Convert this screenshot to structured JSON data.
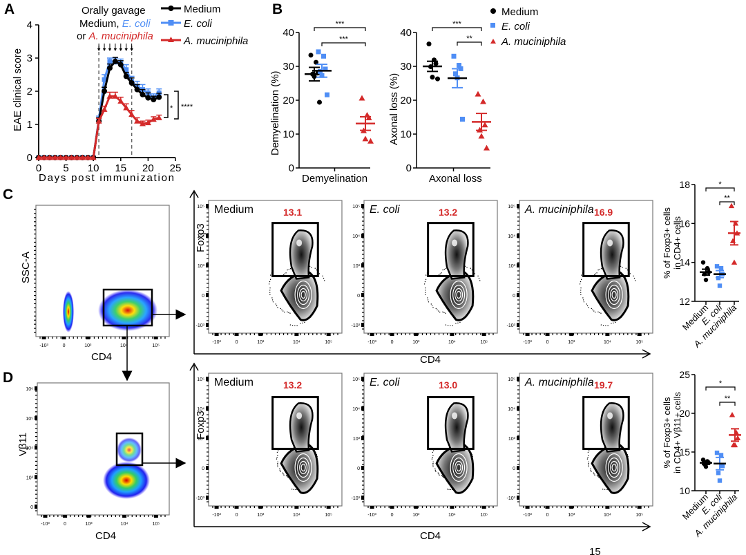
{
  "colors": {
    "medium": "#000000",
    "ecoli": "#4f8ef5",
    "akk": "#d42a2a",
    "gate_text": "#d42a2a"
  },
  "panels": {
    "A": "A",
    "B": "B",
    "C": "C",
    "D": "D"
  },
  "chart_data": [
    {
      "id": "A",
      "type": "line",
      "title": "",
      "xlabel": "Days post immunization",
      "ylabel": "EAE clinical score",
      "xlim": [
        0,
        25
      ],
      "ylim": [
        0,
        4
      ],
      "xticks": [
        "0",
        "5",
        "10",
        "15",
        "20",
        "25"
      ],
      "yticks": [
        "0",
        "1",
        "2",
        "3",
        "4"
      ],
      "annotation": {
        "line1": "Orally gavage",
        "line2_prefix": "Medium, ",
        "line2_ecoli": "E. coli",
        "line3_prefix": "or ",
        "line3_akk": "A. muciniphila"
      },
      "gavage_days": [
        11,
        12,
        13,
        14,
        15,
        16,
        17
      ],
      "dashed_lines_x": [
        11,
        17
      ],
      "significance": [
        {
          "label": "*"
        },
        {
          "label": "****"
        }
      ],
      "legend": {
        "position": "top-right",
        "entries": [
          "Medium",
          "E. coli",
          "A. muciniphila"
        ]
      },
      "x": [
        0,
        1,
        2,
        3,
        4,
        5,
        6,
        7,
        8,
        9,
        10,
        11,
        12,
        13,
        14,
        15,
        16,
        17,
        18,
        19,
        20,
        21,
        22
      ],
      "series": [
        {
          "name": "Medium",
          "values": [
            0,
            0,
            0,
            0,
            0,
            0,
            0,
            0,
            0,
            0,
            0,
            1.1,
            2.0,
            2.7,
            2.9,
            2.8,
            2.45,
            2.25,
            2.05,
            1.9,
            1.8,
            1.75,
            1.82
          ],
          "err": [
            0,
            0,
            0,
            0,
            0,
            0,
            0,
            0,
            0,
            0,
            0,
            0.1,
            0.12,
            0.12,
            0.12,
            0.12,
            0.12,
            0.15,
            0.15,
            0.15,
            0.15,
            0.1,
            0.12
          ]
        },
        {
          "name": "E. coli",
          "values": [
            0,
            0,
            0,
            0,
            0,
            0,
            0,
            0,
            0,
            0,
            0,
            1.15,
            2.35,
            2.9,
            2.88,
            2.85,
            2.65,
            2.3,
            2.15,
            2.05,
            1.95,
            1.8,
            1.95
          ],
          "err": [
            0,
            0,
            0,
            0,
            0,
            0,
            0,
            0,
            0,
            0,
            0,
            0.1,
            0.15,
            0.1,
            0.12,
            0.12,
            0.15,
            0.15,
            0.15,
            0.15,
            0.12,
            0.12,
            0.12
          ]
        },
        {
          "name": "A. muciniphila",
          "values": [
            0,
            0,
            0,
            0,
            0,
            0,
            0,
            0,
            0,
            0,
            0,
            1.1,
            1.45,
            1.85,
            1.85,
            1.7,
            1.5,
            1.3,
            1.1,
            1.02,
            1.05,
            1.15,
            1.2
          ],
          "err": [
            0,
            0,
            0,
            0,
            0,
            0,
            0,
            0,
            0,
            0,
            0,
            0.08,
            0.1,
            0.12,
            0.12,
            0.12,
            0.12,
            0.12,
            0.1,
            0.08,
            0.08,
            0.08,
            0.08
          ]
        }
      ]
    },
    {
      "id": "B1",
      "type": "scatter",
      "ylabel": "Demyelination (%)",
      "xlabel": "Demyelination",
      "ylim": [
        0,
        40
      ],
      "yticks": [
        "0",
        "10",
        "20",
        "30",
        "40"
      ],
      "groups": [
        {
          "name": "Medium",
          "values": [
            33.3,
            31.2,
            28,
            27.7,
            27,
            19.4
          ],
          "mean": 27.7,
          "sem": 2
        },
        {
          "name": "E. coli",
          "values": [
            34.3,
            33,
            29.2,
            28.5,
            27.3,
            21.6
          ],
          "mean": 28.7,
          "sem": 1.9
        },
        {
          "name": "A. muciniphila",
          "values": [
            20.6,
            15.6,
            14.8,
            11,
            8.6,
            7.9
          ],
          "mean": 13.1,
          "sem": 2
        }
      ],
      "significance": [
        {
          "from": "Medium",
          "to": "A. muciniphila",
          "label": "***"
        },
        {
          "from": "E. coli",
          "to": "A. muciniphila",
          "label": "***"
        }
      ]
    },
    {
      "id": "B2",
      "type": "scatter",
      "ylabel": "Axonal loss (%)",
      "xlabel": "Axonal loss",
      "ylim": [
        0,
        40
      ],
      "yticks": [
        "0",
        "10",
        "20",
        "30",
        "40"
      ],
      "groups": [
        {
          "name": "Medium",
          "values": [
            36.6,
            31.9,
            30.8,
            29.9,
            26.8,
            26.3
          ],
          "mean": 30,
          "sem": 1.5
        },
        {
          "name": "E. coli",
          "values": [
            33,
            30.3,
            29.3,
            27.8,
            26.6,
            14.4
          ],
          "mean": 26.5,
          "sem": 2.8
        },
        {
          "name": "A. muciniphila",
          "values": [
            21.8,
            19.6,
            12.7,
            11.2,
            9.4,
            5.9
          ],
          "mean": 13.6,
          "sem": 2.5
        }
      ],
      "legend": {
        "position": "top-right",
        "entries": [
          "Medium",
          "E. coli",
          "A. muciniphila"
        ]
      },
      "significance": [
        {
          "from": "Medium",
          "to": "A. muciniphila",
          "label": "***"
        },
        {
          "from": "E. coli",
          "to": "A. muciniphila",
          "label": "**"
        }
      ]
    },
    {
      "id": "C-summary",
      "type": "scatter",
      "ylabel_line1": "% of Foxp3+ cells",
      "ylabel_line2": "in CD4+ cells",
      "ylim": [
        12,
        18
      ],
      "yticks": [
        "12",
        "14",
        "16",
        "18"
      ],
      "categories": [
        "Medium",
        "E. coli",
        "A. muciniphila"
      ],
      "groups": [
        {
          "name": "Medium",
          "values": [
            14.0,
            13.7,
            13.5,
            13.4,
            13.1
          ],
          "mean": 13.5,
          "sem": 0.15
        },
        {
          "name": "E. coli",
          "values": [
            13.8,
            13.7,
            13.4,
            13.2,
            12.8
          ],
          "mean": 13.4,
          "sem": 0.18
        },
        {
          "name": "A. muciniphila",
          "values": [
            16.9,
            16.0,
            15.5,
            15.1,
            14.0
          ],
          "mean": 15.5,
          "sem": 0.6
        }
      ],
      "significance": [
        {
          "from": "Medium",
          "to": "A. muciniphila",
          "label": "*"
        },
        {
          "from": "E. coli",
          "to": "A. muciniphila",
          "label": "**"
        }
      ]
    },
    {
      "id": "D-summary",
      "type": "scatter",
      "ylabel_line1": "% of Foxp3+ cells",
      "ylabel_line2": "in CD4+ Vβ11+ cells",
      "ylim": [
        10,
        25
      ],
      "yticks": [
        "10",
        "15",
        "20",
        "25"
      ],
      "categories": [
        "Medium",
        "E. coli",
        "A. muciniphila"
      ],
      "groups": [
        {
          "name": "Medium",
          "values": [
            14.0,
            13.8,
            13.6,
            13.4,
            13.1
          ],
          "mean": 13.6,
          "sem": 0.2
        },
        {
          "name": "E. coli",
          "values": [
            14.9,
            14.6,
            13.2,
            12.3,
            11.3
          ],
          "mean": 13.5,
          "sem": 0.8
        },
        {
          "name": "A. muciniphila",
          "values": [
            19.8,
            17.5,
            16.8,
            15.9,
            15.9
          ],
          "mean": 17.2,
          "sem": 0.8
        }
      ],
      "significance": [
        {
          "from": "Medium",
          "to": "A. muciniphila",
          "label": "*"
        },
        {
          "from": "E. coli",
          "to": "A. muciniphila",
          "label": "**"
        }
      ]
    }
  ],
  "flow": {
    "C": {
      "gating_plot": {
        "xlabel": "CD4",
        "ylabel": "SSC-A",
        "xticks": [
          "-10³",
          "0",
          "10³",
          "10⁴",
          "10⁵"
        ]
      },
      "shared_xlabel": "CD4",
      "shared_ylabel": "Foxp3",
      "plots": [
        {
          "name": "Medium",
          "italic": false,
          "gate_percent": "13.1"
        },
        {
          "name": "E. coli",
          "italic": true,
          "gate_percent": "13.2"
        },
        {
          "name": "A. muciniphila",
          "italic": true,
          "gate_percent": "16.9"
        }
      ],
      "yticks": [
        "10⁵",
        "10⁴",
        "10³",
        "0",
        "-10³"
      ],
      "xticks": [
        "-10³",
        "0",
        "10³",
        "10⁴",
        "10⁵"
      ]
    },
    "D": {
      "gating_plot": {
        "xlabel": "CD4",
        "ylabel": "Vβ11",
        "yticks": [
          "10⁶",
          "10⁵",
          "10⁴",
          "10³",
          "0"
        ],
        "xticks": [
          "-10³",
          "0",
          "10³",
          "10⁴",
          "10⁵"
        ]
      },
      "shared_xlabel": "CD4",
      "shared_ylabel": "Foxp3",
      "plots": [
        {
          "name": "Medium",
          "italic": false,
          "gate_percent": "13.2"
        },
        {
          "name": "E. coli",
          "italic": true,
          "gate_percent": "13.0"
        },
        {
          "name": "A. muciniphila",
          "italic": true,
          "gate_percent": "19.7"
        }
      ],
      "yticks": [
        "10⁵",
        "10⁴",
        "10³",
        "0",
        "-10³"
      ],
      "xticks": [
        "-10³",
        "0",
        "10³",
        "10⁴",
        "10⁵"
      ]
    }
  },
  "cropped_fragment": "15"
}
